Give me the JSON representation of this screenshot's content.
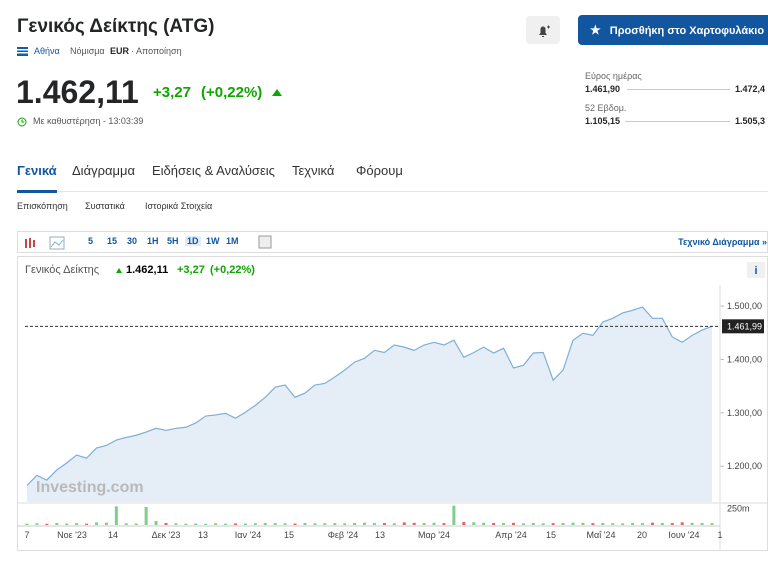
{
  "header": {
    "title": "Γενικός Δείκτης (ATG)",
    "exchange": "Αθήνα",
    "currency_label": "Νόμισμα",
    "currency": "EUR",
    "disclaimer": "· Αποποίηση",
    "price": "1.462,11",
    "change": "+3,27",
    "change_pct": "(+0,22%)",
    "delay": "Με καθυστέρηση - 13:03:39",
    "portfolio_button": "Προσθήκη στο Χαρτοφυλάκιο"
  },
  "ranges": {
    "day_label": "Εύρος ημέρας",
    "day_low": "1.461,90",
    "day_high": "1.472,4",
    "week52_label": "52 Εβδομ.",
    "week52_low": "1.105,15",
    "week52_high": "1.505,3"
  },
  "tabs": [
    "Γενικά",
    "Διάγραμμα",
    "Ειδήσεις & Αναλύσεις",
    "Τεχνικά",
    "Φόρουμ"
  ],
  "subtabs": [
    "Επισκόπηση",
    "Συστατικά",
    "Ιστορικά Στοιχεία"
  ],
  "toolbar": {
    "timeframes": [
      "5",
      "15",
      "30",
      "1H",
      "5H",
      "1D",
      "1W",
      "1M"
    ],
    "technical_link": "Τεχνικό Διάγραμμα »"
  },
  "chart": {
    "type": "area",
    "legend_name": "Γενικός Δείκτης",
    "legend_price": "1.462,11",
    "legend_change": "+3,27",
    "legend_pct": "(+0,22%)",
    "watermark": "Investing.com",
    "info": "i",
    "color": "#7eaed8",
    "categories": [
      "7",
      "Νοε '23",
      "14",
      "Δεκ '23",
      "13",
      "Ιαν '24",
      "15",
      "Φεβ '24",
      "13",
      "Μαρ '24",
      "Απρ '24",
      "15",
      "Μαΐ '24",
      "20",
      "Ιουν '24",
      "1"
    ],
    "values": [
      1164,
      1183,
      1174,
      1193,
      1206,
      1221,
      1215,
      1234,
      1239,
      1249,
      1254,
      1258,
      1264,
      1271,
      1267,
      1271,
      1273,
      1281,
      1294,
      1296,
      1299,
      1290,
      1301,
      1314,
      1329,
      1348,
      1352,
      1329,
      1337,
      1352,
      1355,
      1367,
      1380,
      1395,
      1402,
      1417,
      1413,
      1427,
      1423,
      1417,
      1427,
      1432,
      1427,
      1436,
      1404,
      1413,
      1423,
      1412,
      1421,
      1384,
      1389,
      1412,
      1413,
      1361,
      1380,
      1436,
      1449,
      1445,
      1470,
      1477,
      1487,
      1492,
      1498,
      1477,
      1477,
      1442,
      1432,
      1445,
      1455,
      1462
    ],
    "volumes": [
      20,
      25,
      18,
      30,
      22,
      28,
      20,
      40,
      35,
      280,
      25,
      22,
      270,
      60,
      30,
      25,
      20,
      22,
      18,
      25,
      20,
      24,
      22,
      26,
      30,
      28,
      25,
      22,
      30,
      24,
      26,
      28,
      25,
      30,
      35,
      28,
      30,
      26,
      40,
      32,
      30,
      35,
      28,
      290,
      45,
      40,
      35,
      30,
      28,
      32,
      26,
      30,
      25,
      28,
      30,
      35,
      32,
      28,
      30,
      26,
      25,
      30,
      28,
      35,
      30,
      28,
      40,
      32,
      30,
      28
    ],
    "ylim": [
      1133,
      1530
    ],
    "yticks": [
      {
        "value": 1200,
        "label": "1.200,00"
      },
      {
        "value": 1300,
        "label": "1.300,00"
      },
      {
        "value": 1400,
        "label": "1.400,00"
      },
      {
        "value": 1500,
        "label": "1.500,00"
      }
    ],
    "last": {
      "value": 1461.99,
      "label": "1.461,99"
    },
    "vol_ylim": [
      0,
      300
    ],
    "vol_ticks": [
      {
        "value": 250,
        "label": "250m"
      }
    ]
  }
}
